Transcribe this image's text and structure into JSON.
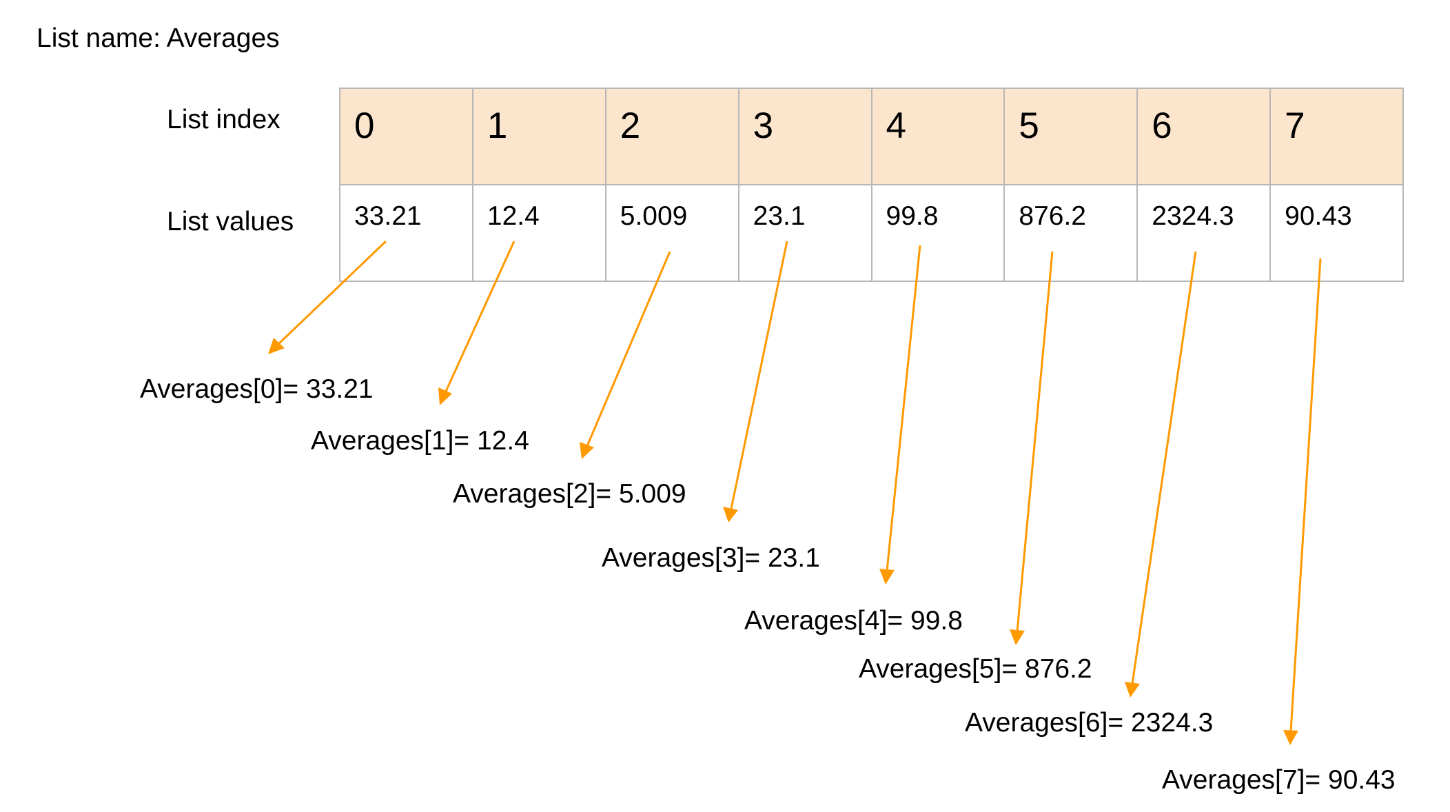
{
  "list_name_caption": "List name: Averages",
  "row_labels": {
    "index": "List index",
    "values": "List values"
  },
  "indices": [
    "0",
    "1",
    "2",
    "3",
    "4",
    "5",
    "6",
    "7"
  ],
  "values": [
    "33.21",
    "12.4",
    "5.009",
    "23.1",
    "99.8",
    "876.2",
    "2324.3",
    "90.43"
  ],
  "access_expressions": [
    "Averages[0]= 33.21",
    "Averages[1]= 12.4",
    "Averages[2]= 5.009",
    "Averages[3]= 23.1",
    "Averages[4]= 99.8",
    "Averages[5]= 876.2",
    "Averages[6]= 2324.3",
    "Averages[7]= 90.43"
  ],
  "colors": {
    "index_row_fill": "#fce5cd",
    "cell_border": "#b7b7b7",
    "arrow": "#ff9900"
  }
}
